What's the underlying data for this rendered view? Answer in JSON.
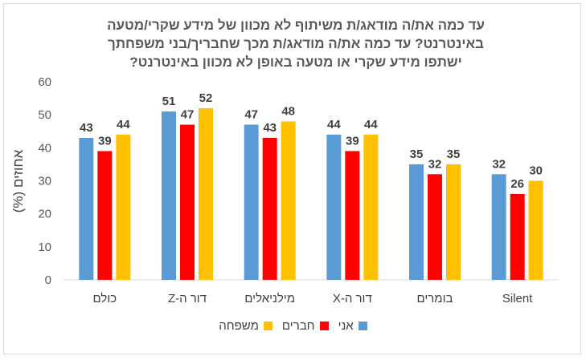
{
  "title_lines": [
    "עד כמה את/ה מודאג/ת משיתוף לא מכוון של מידע שקרי/מטעה",
    "באינטרנט? עד כמה את/ה מודאג/ת מכך שחבריך/בני משפחתך",
    "ישתפו מידע שקרי או מטעה באופן לא מכוון באינטרנט?"
  ],
  "chart_data": {
    "type": "bar",
    "title": "עד כמה את/ה מודאג/ת משיתוף לא מכוון של מידע שקרי/מטעה באינטרנט? עד כמה את/ה מודאג/ת מכך שחבריך/בני משפחתך ישתפו מידע שקרי או מטעה באופן לא מכוון באינטרנט?",
    "xlabel": "",
    "ylabel": "אחוזים (%)",
    "ylim": [
      0,
      60
    ],
    "yticks": [
      0,
      10,
      20,
      30,
      40,
      50,
      60
    ],
    "grid": false,
    "legend_position": "bottom",
    "categories": [
      "כולם",
      "דור ה-Z",
      "מילניאלים",
      "דור ה-X",
      "בומרים",
      "Silent"
    ],
    "series": [
      {
        "name": "אני",
        "color": "#5b9bd5",
        "values": [
          43,
          51,
          47,
          44,
          35,
          32
        ]
      },
      {
        "name": "חברים",
        "color": "#ff0000",
        "values": [
          39,
          47,
          43,
          39,
          32,
          26
        ]
      },
      {
        "name": "משפחה",
        "color": "#ffc000",
        "values": [
          44,
          52,
          48,
          44,
          35,
          30
        ]
      }
    ]
  }
}
